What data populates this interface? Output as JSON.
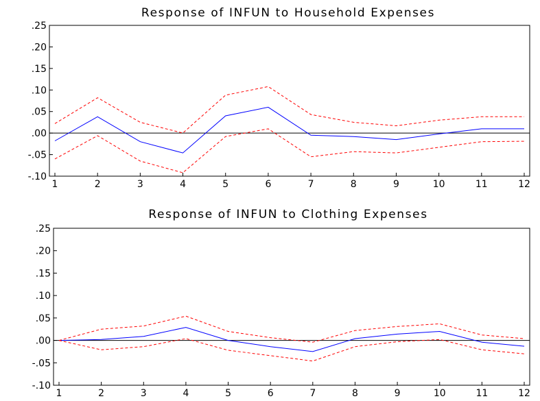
{
  "chart_data": [
    {
      "type": "line",
      "title": "Response of INFUN to Household Expenses",
      "x": [
        1,
        2,
        3,
        4,
        5,
        6,
        7,
        8,
        9,
        10,
        11,
        12
      ],
      "x_tick_labels": [
        "1",
        "2",
        "3",
        "4",
        "5",
        "6",
        "7",
        "8",
        "9",
        "10",
        "11",
        "12"
      ],
      "y_tick_labels": [
        ".25",
        ".20",
        ".15",
        ".10",
        ".05",
        ".00",
        "-.05",
        "-.10"
      ],
      "y_ticks": [
        0.25,
        0.2,
        0.15,
        0.1,
        0.05,
        0.0,
        -0.05,
        -0.1
      ],
      "ylim": [
        -0.1,
        0.25
      ],
      "zero_line": true,
      "grid": false,
      "series": [
        {
          "role": "response",
          "color": "#0000ff",
          "dashed": false,
          "values": [
            -0.018,
            0.038,
            -0.02,
            -0.046,
            0.04,
            0.06,
            -0.005,
            -0.008,
            -0.015,
            -0.002,
            0.01,
            0.01
          ]
        },
        {
          "role": "upper band",
          "color": "#ff0000",
          "dashed": true,
          "values": [
            0.022,
            0.082,
            0.025,
            0.0,
            0.088,
            0.108,
            0.043,
            0.025,
            0.017,
            0.03,
            0.038,
            0.038
          ]
        },
        {
          "role": "lower band",
          "color": "#ff0000",
          "dashed": true,
          "values": [
            -0.06,
            -0.006,
            -0.065,
            -0.092,
            -0.008,
            0.01,
            -0.055,
            -0.043,
            -0.046,
            -0.033,
            -0.02,
            -0.019
          ]
        }
      ]
    },
    {
      "type": "line",
      "title": "Response of INFUN to Clothing Expenses",
      "x": [
        1,
        2,
        3,
        4,
        5,
        6,
        7,
        8,
        9,
        10,
        11,
        12
      ],
      "x_tick_labels": [
        "1",
        "2",
        "3",
        "4",
        "5",
        "6",
        "7",
        "8",
        "9",
        "10",
        "11",
        "12"
      ],
      "y_tick_labels": [
        ".25",
        ".20",
        ".15",
        ".10",
        ".05",
        ".00",
        "-.05",
        "-.10"
      ],
      "y_ticks": [
        0.25,
        0.2,
        0.15,
        0.1,
        0.05,
        0.0,
        -0.05,
        -0.1
      ],
      "ylim": [
        -0.1,
        0.25
      ],
      "zero_line": true,
      "grid": false,
      "series": [
        {
          "role": "response",
          "color": "#0000ff",
          "dashed": false,
          "values": [
            0.0,
            0.002,
            0.009,
            0.029,
            0.0,
            -0.014,
            -0.025,
            0.004,
            0.014,
            0.02,
            -0.004,
            -0.013
          ]
        },
        {
          "role": "upper band",
          "color": "#ff0000",
          "dashed": true,
          "values": [
            0.0,
            0.025,
            0.032,
            0.054,
            0.02,
            0.006,
            -0.004,
            0.022,
            0.031,
            0.037,
            0.012,
            0.004
          ]
        },
        {
          "role": "lower band",
          "color": "#ff0000",
          "dashed": true,
          "values": [
            0.0,
            -0.021,
            -0.014,
            0.004,
            -0.022,
            -0.034,
            -0.046,
            -0.014,
            -0.003,
            0.002,
            -0.021,
            -0.03
          ]
        }
      ]
    }
  ]
}
